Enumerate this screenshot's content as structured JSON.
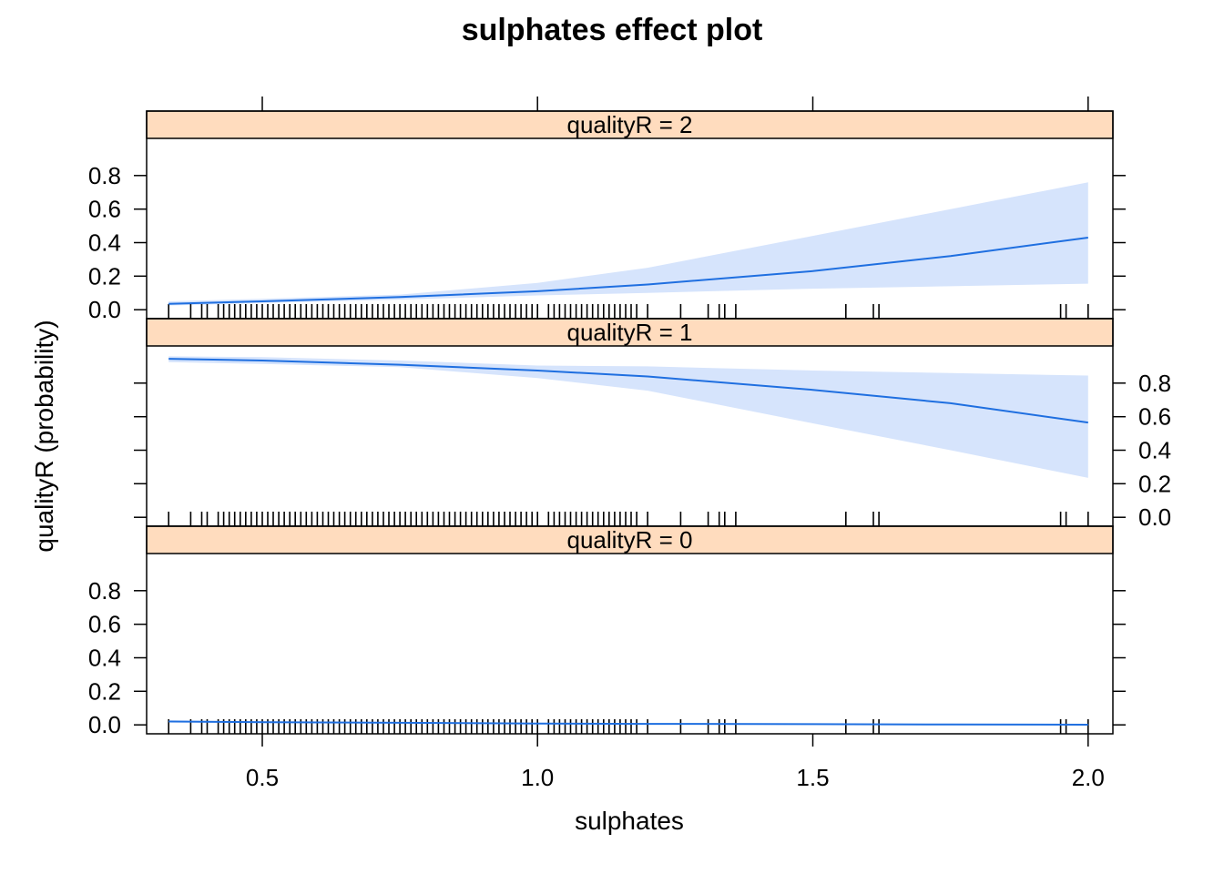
{
  "chart_data": {
    "type": "line",
    "title": "sulphates effect plot",
    "xlabel": "sulphates",
    "ylabel": "qualityR (probability)",
    "xlim": [
      0.29,
      2.045
    ],
    "ylim": [
      -0.01,
      1.0
    ],
    "x_ticks": [
      0.5,
      1.0,
      1.5,
      2.0
    ],
    "x_tick_labels": [
      "0.5",
      "1.0",
      "1.5",
      "2.0"
    ],
    "y_ticks": [
      0.0,
      0.2,
      0.4,
      0.6,
      0.8
    ],
    "y_tick_labels": [
      "0.0",
      "0.2",
      "0.4",
      "0.6",
      "0.8"
    ],
    "grid": false,
    "colors": {
      "line": "#1f6fe0",
      "band": "#d6e4fc",
      "strip": "#ffdcbe",
      "frame": "#000000"
    },
    "panels": [
      {
        "name": "qualityR = 2",
        "y_axis_side": "left",
        "x": [
          0.33,
          0.5,
          0.75,
          1.0,
          1.2,
          1.5,
          1.75,
          2.0
        ],
        "fit": [
          0.035,
          0.05,
          0.075,
          0.11,
          0.15,
          0.23,
          0.32,
          0.43
        ],
        "lower": [
          0.025,
          0.04,
          0.06,
          0.085,
          0.1,
          0.125,
          0.14,
          0.155
        ],
        "upper": [
          0.05,
          0.065,
          0.09,
          0.16,
          0.25,
          0.44,
          0.6,
          0.76
        ]
      },
      {
        "name": "qualityR = 1",
        "y_axis_side": "right",
        "x": [
          0.33,
          0.5,
          0.75,
          1.0,
          1.2,
          1.5,
          1.75,
          2.0
        ],
        "fit": [
          0.945,
          0.935,
          0.91,
          0.875,
          0.84,
          0.76,
          0.68,
          0.565
        ],
        "lower": [
          0.925,
          0.915,
          0.895,
          0.83,
          0.755,
          0.56,
          0.4,
          0.235
        ],
        "upper": [
          0.96,
          0.955,
          0.935,
          0.905,
          0.9,
          0.875,
          0.86,
          0.845
        ]
      },
      {
        "name": "qualityR = 0",
        "y_axis_side": "left",
        "x": [
          0.33,
          0.5,
          0.75,
          1.0,
          1.2,
          1.5,
          1.75,
          2.0
        ],
        "fit": [
          0.02,
          0.016,
          0.012,
          0.008,
          0.006,
          0.004,
          0.002,
          0.001
        ],
        "lower": [
          0.015,
          0.012,
          0.009,
          0.005,
          0.003,
          0.001,
          0.0,
          0.0
        ],
        "upper": [
          0.027,
          0.021,
          0.016,
          0.012,
          0.011,
          0.009,
          0.007,
          0.006
        ]
      }
    ],
    "rug_x": [
      0.33,
      0.37,
      0.39,
      0.4,
      0.42,
      0.43,
      0.44,
      0.45,
      0.46,
      0.47,
      0.48,
      0.49,
      0.5,
      0.51,
      0.52,
      0.53,
      0.54,
      0.55,
      0.56,
      0.57,
      0.58,
      0.59,
      0.6,
      0.61,
      0.62,
      0.63,
      0.64,
      0.65,
      0.66,
      0.67,
      0.68,
      0.69,
      0.7,
      0.71,
      0.72,
      0.73,
      0.74,
      0.75,
      0.76,
      0.77,
      0.78,
      0.79,
      0.8,
      0.81,
      0.82,
      0.83,
      0.84,
      0.85,
      0.86,
      0.87,
      0.88,
      0.89,
      0.9,
      0.91,
      0.92,
      0.93,
      0.94,
      0.95,
      0.96,
      0.97,
      0.98,
      0.99,
      1.0,
      1.02,
      1.03,
      1.04,
      1.05,
      1.06,
      1.07,
      1.08,
      1.09,
      1.1,
      1.11,
      1.12,
      1.13,
      1.14,
      1.15,
      1.16,
      1.17,
      1.18,
      1.2,
      1.26,
      1.31,
      1.33,
      1.34,
      1.36,
      1.56,
      1.61,
      1.62,
      1.95,
      1.96,
      2.0
    ]
  }
}
